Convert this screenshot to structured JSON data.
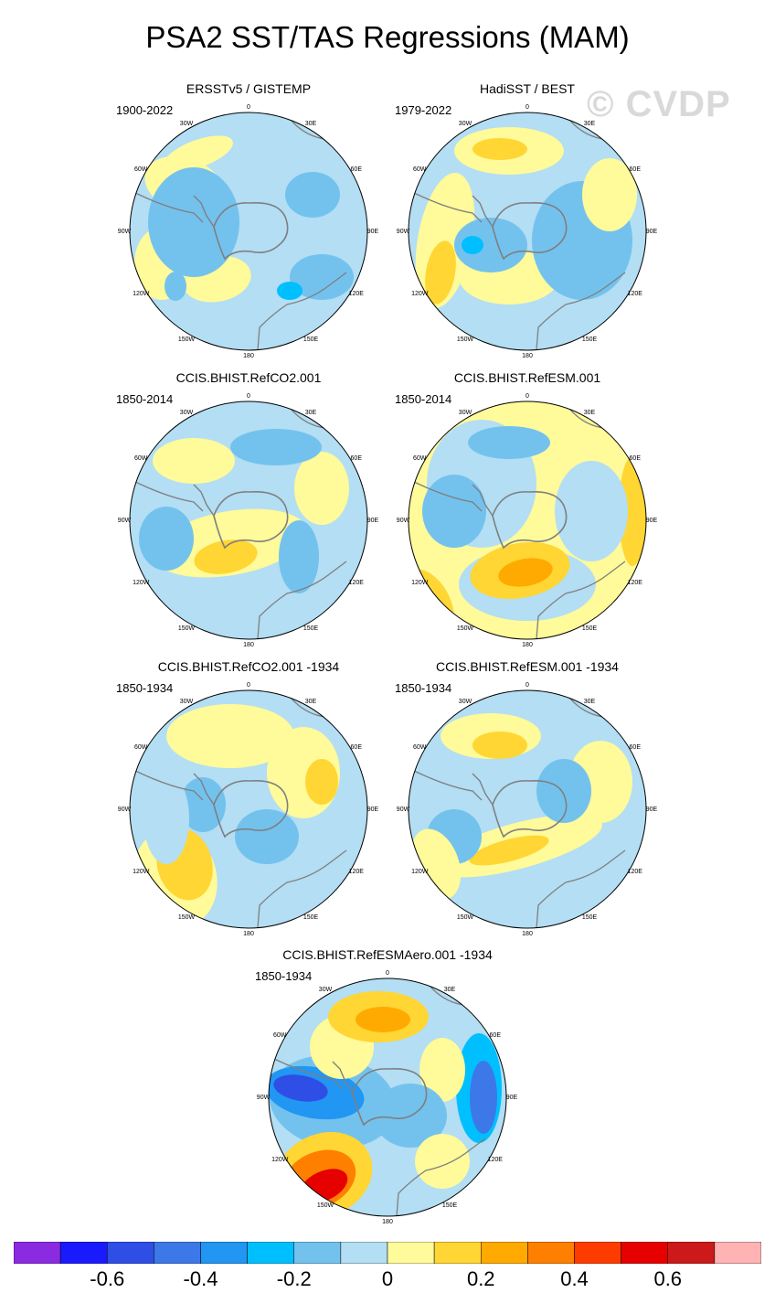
{
  "title": "PSA2 SST/TAS Regressions (MAM)",
  "watermark": "© CVDP",
  "colors": {
    "scale": [
      "#8a2be2",
      "#1a1aff",
      "#2e4ee6",
      "#3c78e8",
      "#2196f3",
      "#00bfff",
      "#73c2ee",
      "#b3def4",
      "#fffa9a",
      "#ffd633",
      "#ffaa00",
      "#ff7f00",
      "#ff3c00",
      "#e60000",
      "#cc1a1a",
      "#ffb3b3"
    ],
    "coast": "#7f7f7f"
  },
  "panels": [
    {
      "title": "ERSSTv5 / GISTEMP",
      "period": "1900-2022"
    },
    {
      "title": "HadiSST / BEST",
      "period": "1979-2022"
    },
    {
      "title": "CCIS.BHIST.RefCO2.001",
      "period": "1850-2014"
    },
    {
      "title": "CCIS.BHIST.RefESM.001",
      "period": "1850-2014"
    },
    {
      "title": "CCIS.BHIST.RefCO2.001 -1934",
      "period": "1850-1934"
    },
    {
      "title": "CCIS.BHIST.RefESM.001 -1934",
      "period": "1850-1934"
    },
    {
      "title": "CCIS.BHIST.RefESMAero.001 -1934",
      "period": "1850-1934"
    }
  ],
  "longitude_labels": [
    "0",
    "30E",
    "60E",
    "90E",
    "120E",
    "150E",
    "180",
    "150W",
    "120W",
    "90W",
    "60W",
    "30W"
  ],
  "colorbar": {
    "levels": [
      -0.7,
      -0.6,
      -0.5,
      -0.4,
      -0.3,
      -0.2,
      -0.1,
      0,
      0.1,
      0.2,
      0.3,
      0.4,
      0.5,
      0.6,
      0.7
    ],
    "labels": [
      "-0.6",
      "-0.4",
      "-0.2",
      "0",
      "0.2",
      "0.4",
      "0.6"
    ],
    "label_values": [
      -0.6,
      -0.4,
      -0.2,
      0,
      0.2,
      0.4,
      0.6
    ]
  }
}
